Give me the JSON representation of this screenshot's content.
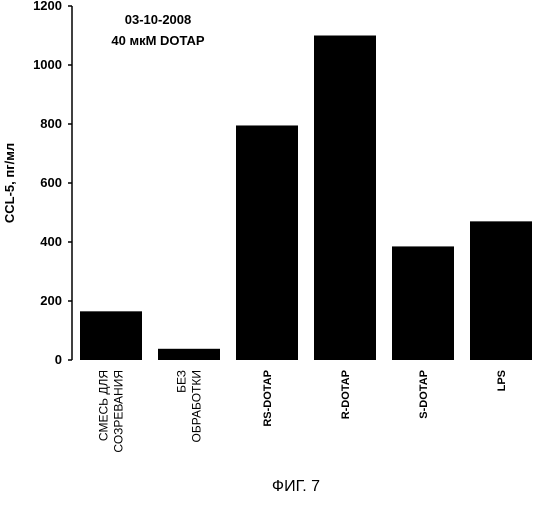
{
  "chart_data": {
    "type": "bar",
    "categories": [
      [
        "СМЕСЬ ДЛЯ",
        "СОЗРЕВАНИЯ"
      ],
      [
        "БЕЗ",
        "ОБРАБОТКИ"
      ],
      [
        "RS-DOTAP"
      ],
      [
        "R-DOTAP"
      ],
      [
        "S-DOTAP"
      ],
      [
        "LPS"
      ]
    ],
    "values": [
      165,
      38,
      795,
      1100,
      385,
      470
    ],
    "ylabel": "CCL-5, пг/мл",
    "xlabel": "",
    "ylim": [
      0,
      1200
    ],
    "yticks": [
      0,
      200,
      400,
      600,
      800,
      1000,
      1200
    ],
    "annotations": [
      "03-10-2008",
      "40 мкМ DOTAP"
    ],
    "bar_color": "#000000",
    "grid": false,
    "legend": "none"
  },
  "figure_caption": "ФИГ. 7"
}
